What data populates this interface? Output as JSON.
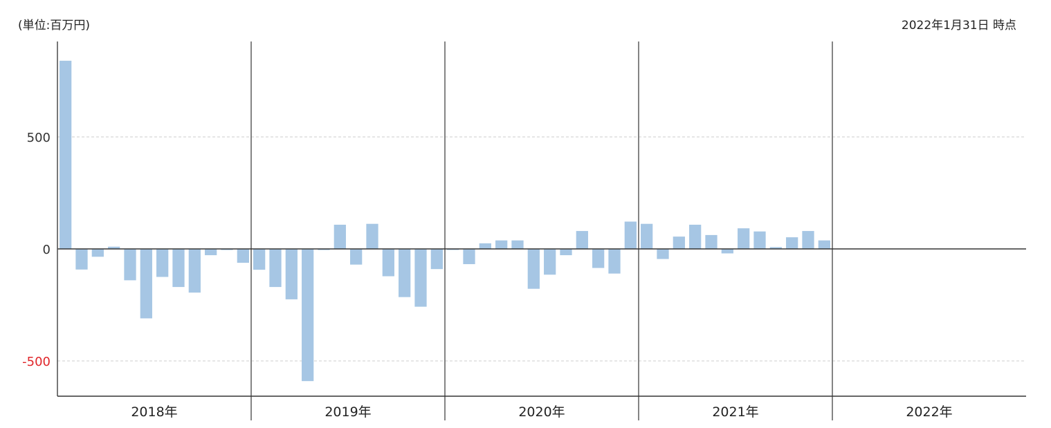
{
  "header": {
    "unit": "(単位:百万円)",
    "as_of": "2022年1月31日 時点"
  },
  "colors": {
    "bar": "#a6c6e4",
    "negative_tick": "#e0262a",
    "positive_tick": "#333333",
    "axis": "#555555",
    "grid": "#cccccc"
  },
  "chart_data": {
    "type": "bar",
    "ylim": [
      -650,
      900
    ],
    "yticks": [
      {
        "value": 500,
        "label": "500"
      },
      {
        "value": 0,
        "label": "0"
      },
      {
        "value": -500,
        "label": "-500"
      }
    ],
    "grid": true,
    "years": [
      "2018年",
      "2019年",
      "2020年",
      "2021年",
      "2022年"
    ],
    "months_per_year": 12,
    "values": [
      840,
      -92,
      -35,
      10,
      -140,
      -310,
      -125,
      -170,
      -195,
      -28,
      -5,
      -62,
      -93,
      -170,
      -225,
      -590,
      -5,
      108,
      -70,
      112,
      -122,
      -215,
      -258,
      -90,
      -3,
      -68,
      25,
      38,
      38,
      -178,
      -115,
      -28,
      80,
      -85,
      -110,
      122,
      112,
      -45,
      55,
      108,
      62,
      -20,
      92,
      78,
      8,
      52,
      80,
      38
    ]
  }
}
